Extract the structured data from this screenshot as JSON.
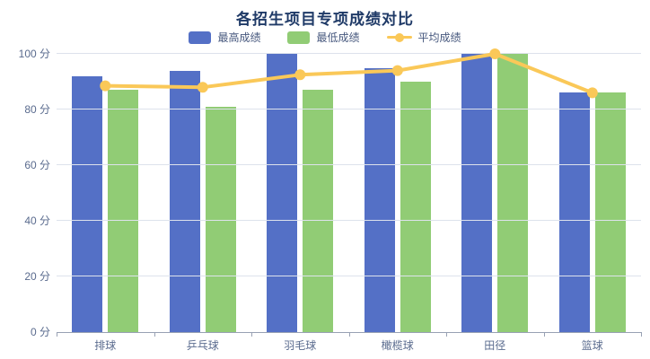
{
  "chart_data": {
    "type": "bar",
    "title": "各招生项目专项成绩对比",
    "categories": [
      "排球",
      "乒乓球",
      "羽毛球",
      "橄榄球",
      "田径",
      "篮球"
    ],
    "series": [
      {
        "name": "最高成绩",
        "type": "bar",
        "color": "#5470c6",
        "values": [
          92,
          94,
          100,
          95,
          100,
          86
        ]
      },
      {
        "name": "最低成绩",
        "type": "bar",
        "color": "#91cc75",
        "values": [
          87,
          81,
          87,
          90,
          100,
          86
        ]
      },
      {
        "name": "平均成绩",
        "type": "line",
        "color": "#fac858",
        "values": [
          88.5,
          88,
          92.5,
          94,
          100,
          86
        ]
      }
    ],
    "ylim": [
      0,
      100
    ],
    "y_tick_step": 20,
    "y_ticks": [
      "0 分",
      "20 分",
      "40 分",
      "60 分",
      "80 分",
      "100 分"
    ],
    "y_unit": "分",
    "grid": true,
    "legend_position": "top",
    "colors": {
      "title": "#1f3a67",
      "axis_label": "#5a6b8e",
      "gridline": "#dde2ec",
      "axis_line": "#98a1b3",
      "background": "#ffffff"
    }
  }
}
